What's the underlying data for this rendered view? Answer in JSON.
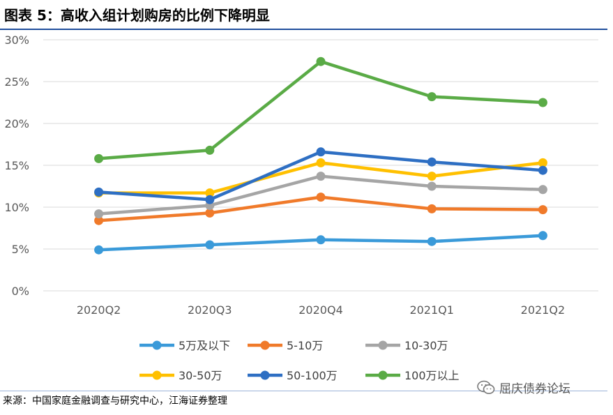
{
  "header": {
    "title": "图表 5：高收入组计划购房的比例下降明显"
  },
  "chart_data": {
    "type": "line",
    "title": "",
    "xlabel": "",
    "ylabel": "",
    "categories": [
      "2020Q2",
      "2020Q3",
      "2020Q4",
      "2021Q1",
      "2021Q2"
    ],
    "y_ticks": [
      "0%",
      "5%",
      "10%",
      "15%",
      "20%",
      "25%",
      "30%"
    ],
    "ylim": [
      0,
      30
    ],
    "grid": true,
    "legend_position": "bottom",
    "series": [
      {
        "name": "5万及以下",
        "color": "#3a9ad9",
        "values": [
          4.9,
          5.5,
          6.1,
          5.9,
          6.6
        ]
      },
      {
        "name": "5-10万",
        "color": "#f07a2a",
        "values": [
          8.4,
          9.3,
          11.2,
          9.8,
          9.7
        ]
      },
      {
        "name": "10-30万",
        "color": "#a5a5a5",
        "values": [
          9.2,
          10.2,
          13.7,
          12.5,
          12.1
        ]
      },
      {
        "name": "30-50万",
        "color": "#ffc000",
        "values": [
          11.7,
          11.7,
          15.3,
          13.7,
          15.3
        ]
      },
      {
        "name": "50-100万",
        "color": "#2e6fc3",
        "values": [
          11.8,
          10.9,
          16.6,
          15.4,
          14.4
        ]
      },
      {
        "name": "100万以上",
        "color": "#5aab46",
        "values": [
          15.8,
          16.8,
          27.4,
          23.2,
          22.5
        ]
      }
    ]
  },
  "footer": {
    "source": "来源：中国家庭金融调查与研究中心，江海证券整理",
    "watermark": "屈庆债券论坛",
    "watermark_icon": "wechat-icon"
  }
}
